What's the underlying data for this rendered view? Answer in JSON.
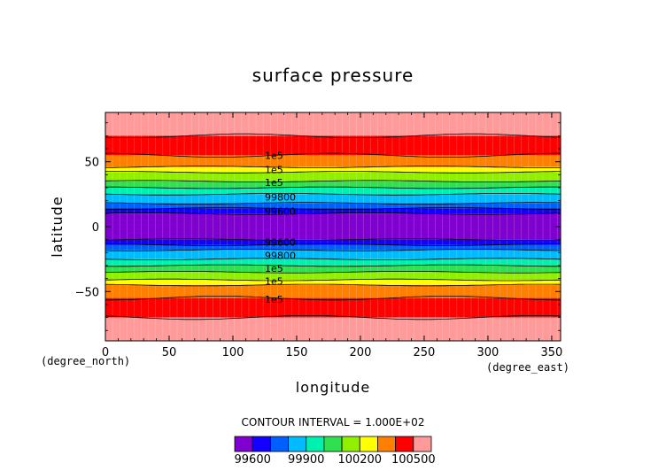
{
  "chart_data": {
    "type": "heatmap",
    "title": "surface pressure",
    "xlabel": "longitude",
    "ylabel": "latitude",
    "x_unit": "(degree_east)",
    "y_unit": "(degree_north)",
    "xlim": [
      0,
      357
    ],
    "ylim": [
      -88,
      88
    ],
    "x_ticks": [
      0,
      50,
      100,
      150,
      200,
      250,
      300,
      350
    ],
    "y_ticks": [
      -50,
      0,
      50
    ],
    "contour_interval_text": "CONTOUR INTERVAL = 1.000E+02",
    "levels": [
      99500,
      99600,
      99700,
      99800,
      99900,
      100000,
      100100,
      100200,
      100300,
      100400,
      100500,
      100600
    ],
    "colorbar_labels": [
      99600,
      99900,
      100200,
      100500
    ],
    "band_colors": [
      "#8000d0",
      "#1400ff",
      "#0060ff",
      "#00bcff",
      "#00f0b0",
      "#30e050",
      "#90f000",
      "#ffff00",
      "#ff8000",
      "#ff0000",
      "#ff9a9a"
    ],
    "bands_latitude": [
      {
        "color": "#ff9a9a",
        "from": 70,
        "to": 88
      },
      {
        "color": "#ff0000",
        "from": 55,
        "to": 70
      },
      {
        "color": "#ff8000",
        "from": 46,
        "to": 55
      },
      {
        "color": "#ffff00",
        "from": 42,
        "to": 46
      },
      {
        "color": "#90f000",
        "from": 35,
        "to": 42
      },
      {
        "color": "#30e050",
        "from": 30,
        "to": 35
      },
      {
        "color": "#00f0b0",
        "from": 25,
        "to": 30
      },
      {
        "color": "#00bcff",
        "from": 18,
        "to": 25
      },
      {
        "color": "#0060ff",
        "from": 14,
        "to": 18
      },
      {
        "color": "#1400ff",
        "from": 10,
        "to": 14
      },
      {
        "color": "#8000d0",
        "from": -10,
        "to": 10
      },
      {
        "color": "#1400ff",
        "from": -14,
        "to": -10
      },
      {
        "color": "#0060ff",
        "from": -18,
        "to": -14
      },
      {
        "color": "#00bcff",
        "from": -25,
        "to": -18
      },
      {
        "color": "#00f0b0",
        "from": -30,
        "to": -25
      },
      {
        "color": "#30e050",
        "from": -35,
        "to": -30
      },
      {
        "color": "#90f000",
        "from": -41,
        "to": -35
      },
      {
        "color": "#ffff00",
        "from": -45,
        "to": -41
      },
      {
        "color": "#ff8000",
        "from": -55,
        "to": -45
      },
      {
        "color": "#ff0000",
        "from": -70,
        "to": -55
      },
      {
        "color": "#ff9a9a",
        "from": -88,
        "to": -70
      }
    ],
    "contour_labels": [
      {
        "text": "1e5",
        "lon": 125,
        "lat": 55
      },
      {
        "text": "1e5",
        "lon": 125,
        "lat": 44
      },
      {
        "text": "1e5",
        "lon": 125,
        "lat": 34
      },
      {
        "text": "99800",
        "lon": 125,
        "lat": 23
      },
      {
        "text": "99600",
        "lon": 125,
        "lat": 12
      },
      {
        "text": "99600",
        "lon": 125,
        "lat": -12
      },
      {
        "text": "99800",
        "lon": 125,
        "lat": -22
      },
      {
        "text": "1e5",
        "lon": 125,
        "lat": -32
      },
      {
        "text": "1e5",
        "lon": 125,
        "lat": -42
      },
      {
        "text": "1e5",
        "lon": 125,
        "lat": -56
      }
    ]
  }
}
